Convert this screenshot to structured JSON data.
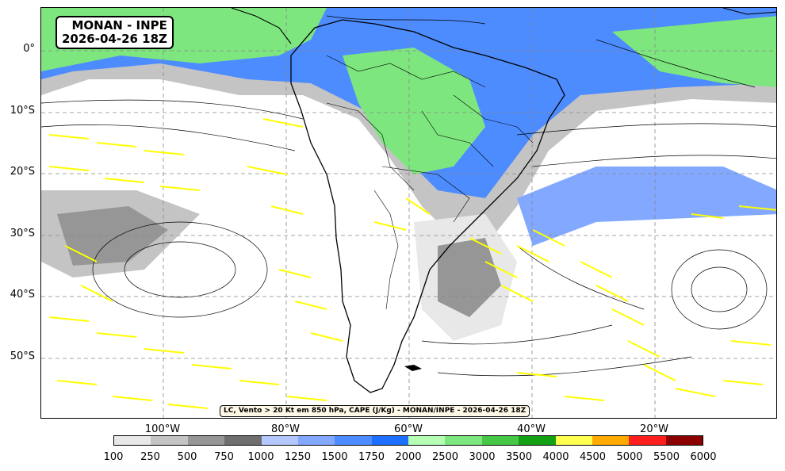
{
  "title": {
    "line1": "MONAN - INPE",
    "line2": "2026-04-26 18Z"
  },
  "caption": "LC, Vento > 20 Kt em 850 hPa, CAPE (J/Kg) - MONAN/INPE - 2026-04-26 18Z",
  "lat_labels": [
    "0°",
    "10°S",
    "20°S",
    "30°S",
    "40°S",
    "50°S"
  ],
  "lon_labels": [
    "100°W",
    "80°W",
    "60°W",
    "40°W",
    "20°W"
  ],
  "colorbar": {
    "ticks": [
      "100",
      "250",
      "500",
      "750",
      "1000",
      "1250",
      "1500",
      "1750",
      "2000",
      "2500",
      "3000",
      "3500",
      "4000",
      "4500",
      "5000",
      "5500",
      "6000"
    ],
    "colors": [
      "#e8e8e8",
      "#c4c4c4",
      "#969696",
      "#6e6e6e",
      "#b4c8ff",
      "#82a8ff",
      "#4d8cff",
      "#1e6eff",
      "#b4ffb4",
      "#7ee67e",
      "#46c846",
      "#14a014",
      "#ffff50",
      "#ffaa00",
      "#ff1e1e",
      "#8c0000"
    ]
  },
  "colors": {
    "coast": "#000000",
    "streamline": "#000000",
    "wind_strong": "#ffff00",
    "gridline": "#888888"
  }
}
